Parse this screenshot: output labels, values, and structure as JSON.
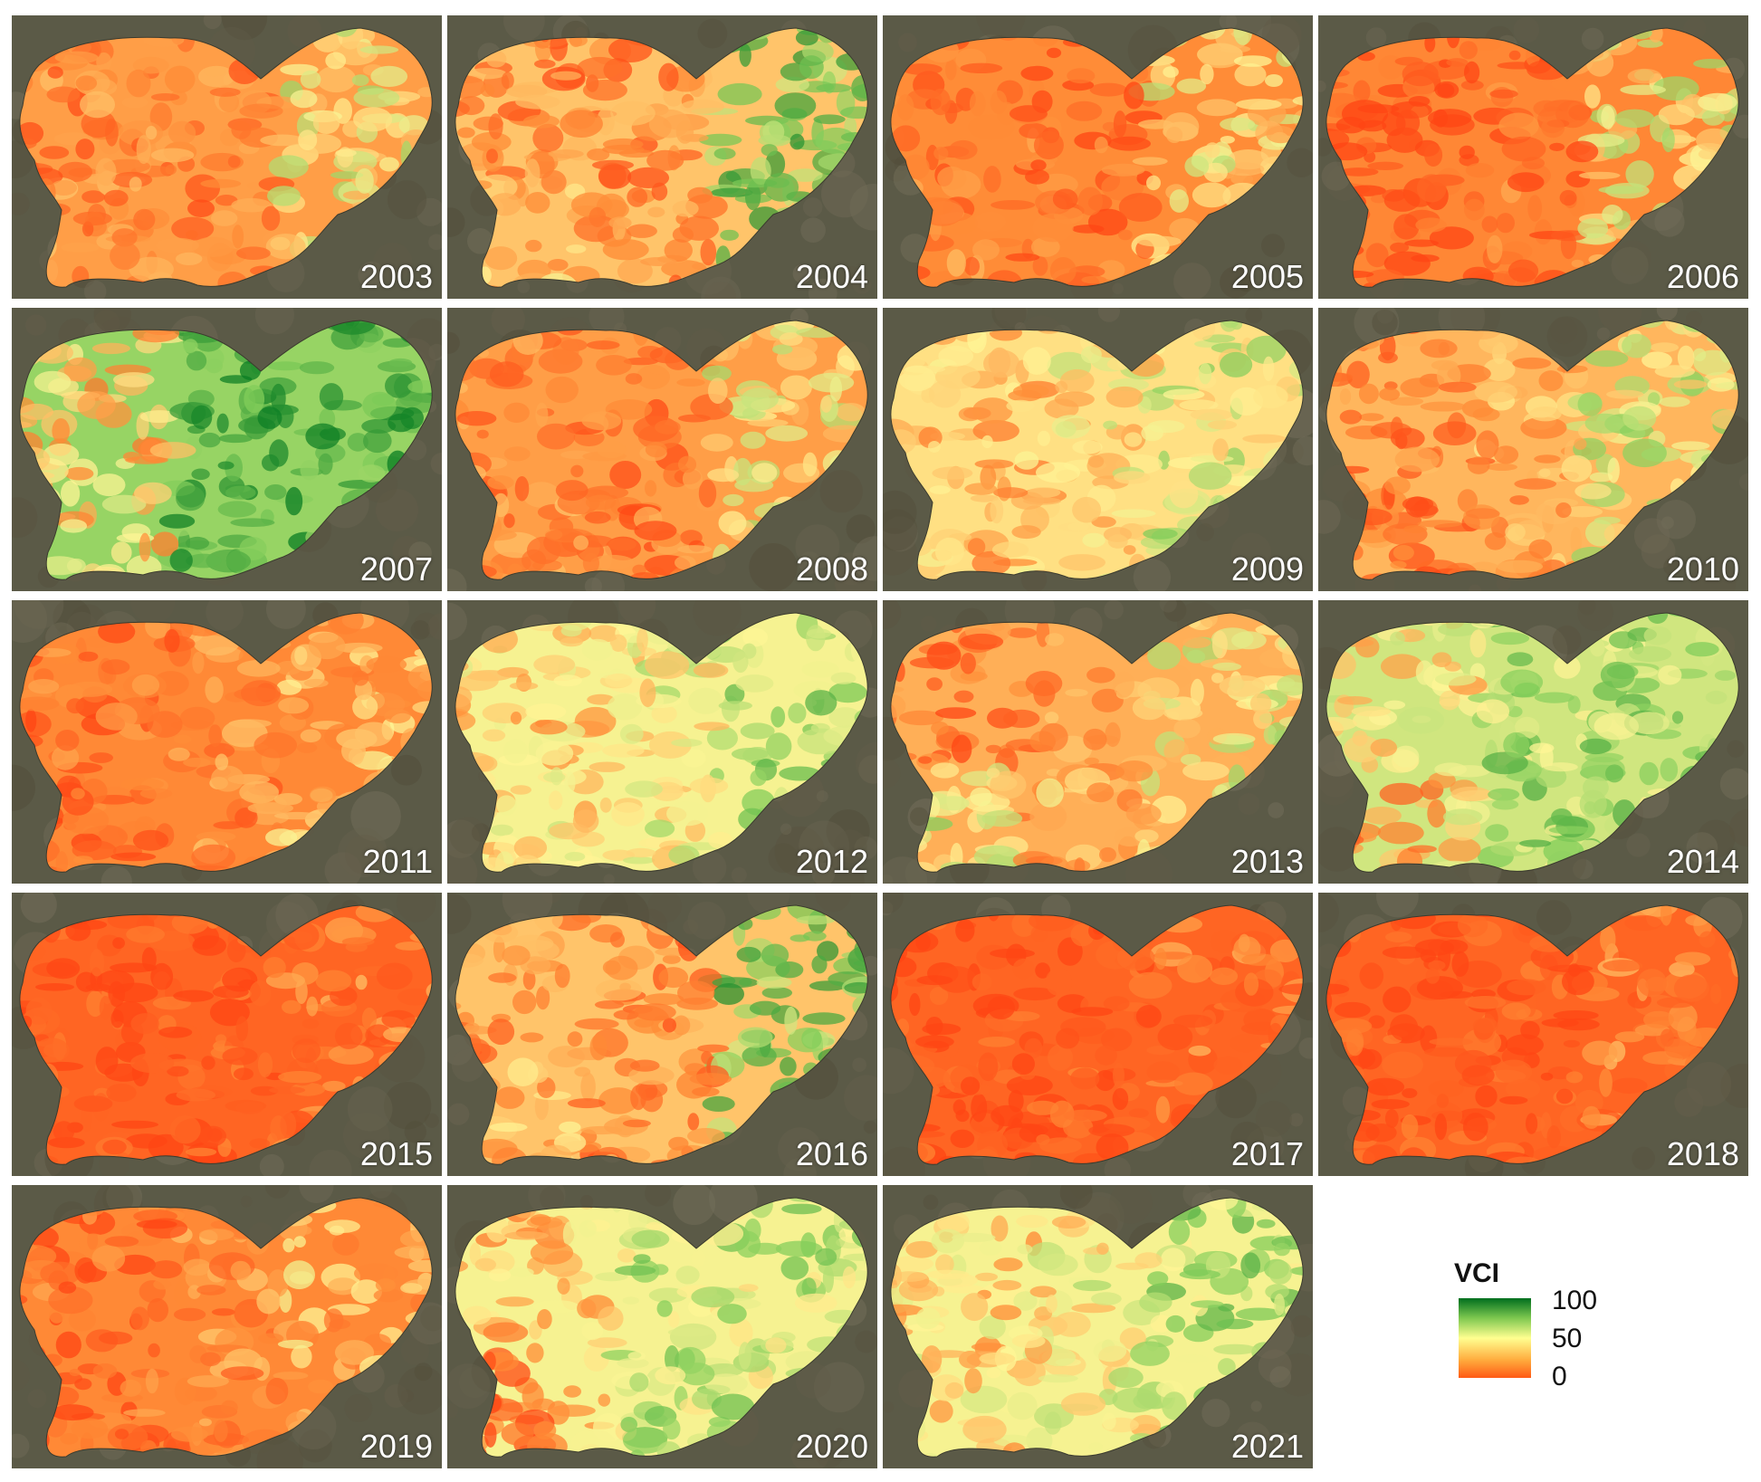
{
  "figure": {
    "panels": [
      {
        "year": "2003",
        "profile": "mix_red"
      },
      {
        "year": "2004",
        "profile": "red_green_east"
      },
      {
        "year": "2005",
        "profile": "red_dom"
      },
      {
        "year": "2006",
        "profile": "west_red_east_yellow"
      },
      {
        "year": "2007",
        "profile": "green_dom"
      },
      {
        "year": "2008",
        "profile": "mix_red"
      },
      {
        "year": "2009",
        "profile": "yellow_dom"
      },
      {
        "year": "2010",
        "profile": "mix_red_green"
      },
      {
        "year": "2011",
        "profile": "red_orange"
      },
      {
        "year": "2012",
        "profile": "yellow_green"
      },
      {
        "year": "2013",
        "profile": "red_west_green_east"
      },
      {
        "year": "2014",
        "profile": "green_mix"
      },
      {
        "year": "2015",
        "profile": "all_red"
      },
      {
        "year": "2016",
        "profile": "red_green_east"
      },
      {
        "year": "2017",
        "profile": "all_red"
      },
      {
        "year": "2018",
        "profile": "all_red"
      },
      {
        "year": "2019",
        "profile": "red_orange"
      },
      {
        "year": "2020",
        "profile": "green_east_red_sw"
      },
      {
        "year": "2021",
        "profile": "yellow_green"
      }
    ]
  },
  "legend": {
    "title": "VCI",
    "ticks": [
      "100",
      "50",
      "0"
    ],
    "colors": [
      "#006e1e",
      "#ffff90",
      "#ff5a14"
    ]
  },
  "colors": {
    "background_imagery": "#5b5a47",
    "label_text": "#ffffff"
  }
}
